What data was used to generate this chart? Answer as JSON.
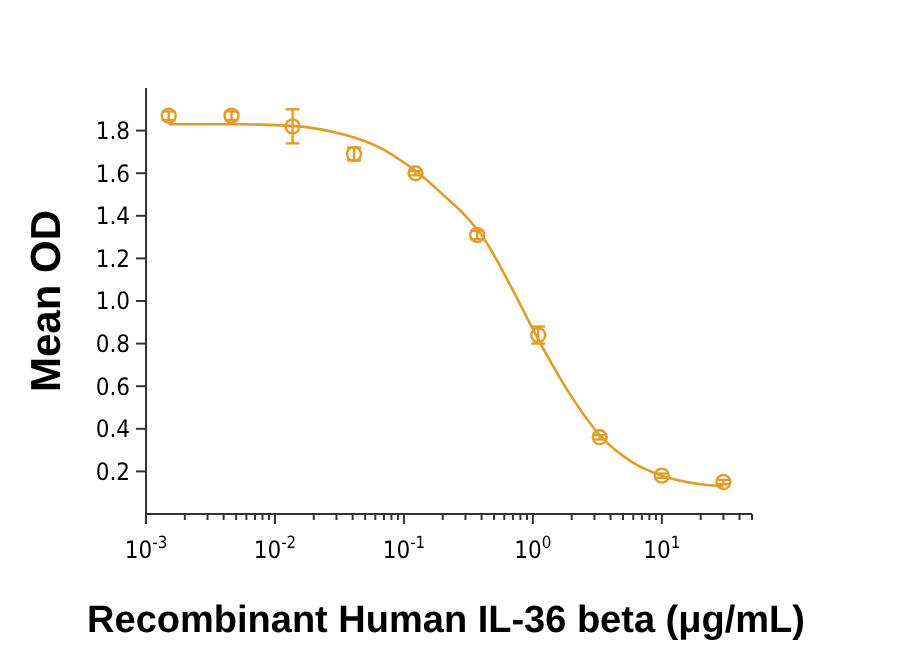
{
  "chart_data": {
    "type": "scatter",
    "xlabel": "Recombinant Human IL-36 beta (μg/mL)",
    "ylabel": "Mean OD",
    "log": "x",
    "xlim": [
      0.001,
      50
    ],
    "ylim": [
      0,
      2
    ],
    "xticks": [
      {
        "value": 0.001,
        "label": "10$^{-3}$"
      },
      {
        "value": 0.002,
        "label": null
      },
      {
        "value": 0.003,
        "label": null
      },
      {
        "value": 0.004,
        "label": null
      },
      {
        "value": 0.005,
        "label": null
      },
      {
        "value": 0.006,
        "label": null
      },
      {
        "value": 0.007,
        "label": null
      },
      {
        "value": 0.008,
        "label": null
      },
      {
        "value": 0.009,
        "label": null
      },
      {
        "value": 0.01,
        "label": "10$^{-2}$"
      },
      {
        "value": 0.02,
        "label": null
      },
      {
        "value": 0.03,
        "label": null
      },
      {
        "value": 0.04,
        "label": null
      },
      {
        "value": 0.05,
        "label": null
      },
      {
        "value": 0.06,
        "label": null
      },
      {
        "value": 0.07,
        "label": null
      },
      {
        "value": 0.08,
        "label": null
      },
      {
        "value": 0.09,
        "label": null
      },
      {
        "value": 0.1,
        "label": "10$^{-1}$"
      },
      {
        "value": 0.2,
        "label": null
      },
      {
        "value": 0.3,
        "label": null
      },
      {
        "value": 0.4,
        "label": null
      },
      {
        "value": 0.5,
        "label": null
      },
      {
        "value": 0.6,
        "label": null
      },
      {
        "value": 0.7,
        "label": null
      },
      {
        "value": 0.8,
        "label": null
      },
      {
        "value": 0.9,
        "label": null
      },
      {
        "value": 1,
        "label": "10$^{0}$"
      },
      {
        "value": 2,
        "label": null
      },
      {
        "value": 3,
        "label": null
      },
      {
        "value": 4,
        "label": null
      },
      {
        "value": 5,
        "label": null
      },
      {
        "value": 6,
        "label": null
      },
      {
        "value": 7,
        "label": null
      },
      {
        "value": 8,
        "label": null
      },
      {
        "value": 9,
        "label": null
      },
      {
        "value": 10,
        "label": "10$^{1}$"
      },
      {
        "value": 20,
        "label": null
      },
      {
        "value": 30,
        "label": null
      },
      {
        "value": 40,
        "label": null
      },
      {
        "value": 50,
        "label": null
      }
    ],
    "yticks": [
      0.2,
      0.4,
      0.6,
      0.8,
      {
        "value": 1,
        "label": "1.0"
      },
      1.2,
      1.4,
      1.6,
      1.8
    ],
    "grid": false,
    "series": [
      {
        "marker": "circle",
        "color": "#e39b2b",
        "x": [
          0.0015,
          0.0046,
          0.0137,
          0.041,
          0.123,
          0.37,
          1.1,
          3.3,
          10,
          30
        ],
        "values": [
          1.87,
          1.87,
          1.82,
          1.69,
          1.6,
          1.31,
          0.84,
          0.36,
          0.18,
          0.15
        ],
        "errors": [
          0.02,
          0.02,
          0.08,
          0.03,
          0.01,
          0.02,
          0.04,
          0.01,
          0.01,
          0.01
        ]
      },
      {
        "type": "line",
        "line_style": "solid",
        "color": "#e39b2b",
        "x": [
          0.0015,
          0.005,
          0.015,
          0.03,
          0.05,
          0.07,
          0.1,
          0.13,
          0.2,
          0.3,
          0.4,
          0.7,
          1.1,
          2,
          3.3,
          6,
          10,
          20,
          30
        ],
        "values": [
          1.83,
          1.83,
          1.82,
          1.79,
          1.75,
          1.71,
          1.65,
          1.6,
          1.5,
          1.4,
          1.31,
          1.05,
          0.82,
          0.55,
          0.37,
          0.24,
          0.18,
          0.14,
          0.13
        ]
      }
    ]
  }
}
